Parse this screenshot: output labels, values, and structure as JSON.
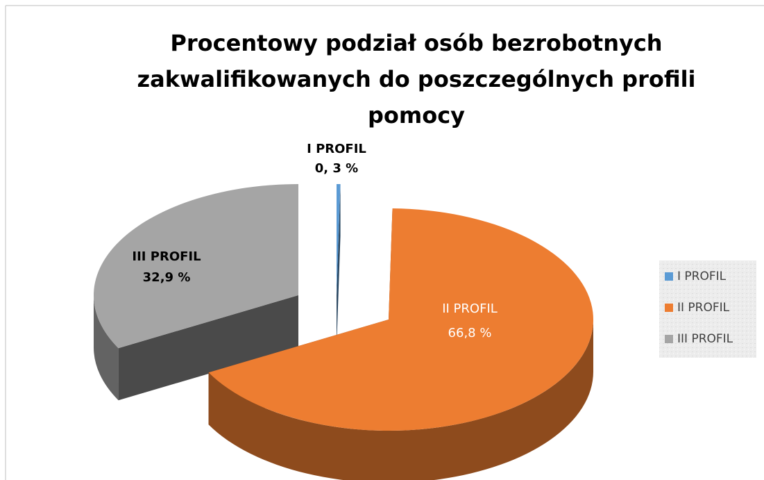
{
  "chart_data": {
    "type": "pie3d",
    "title": "Procentowy  podział osób bezrobotnych zakwalifikowanych do poszczególnych profili pomocy",
    "categories": [
      "I PROFIL",
      "II PROFIL",
      "III PROFIL"
    ],
    "values": [
      0.3,
      66.8,
      32.9
    ],
    "value_labels": [
      "0, 3 %",
      "66,8 %",
      "32,9 %"
    ],
    "colors": [
      "#5b9bd5",
      "#ed7d31",
      "#a5a5a5"
    ],
    "legend": "right"
  }
}
